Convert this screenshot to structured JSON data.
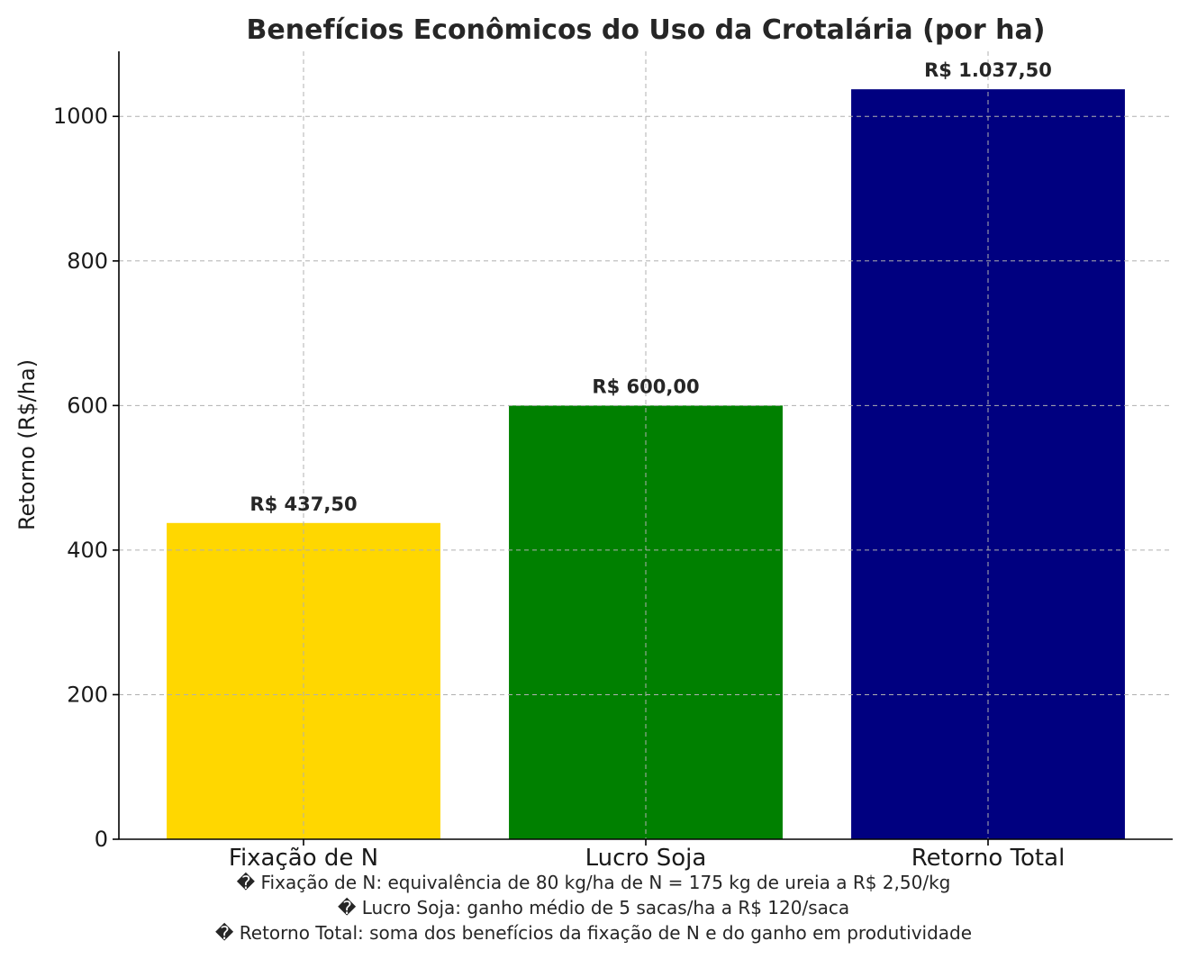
{
  "chart_data": {
    "type": "bar",
    "title": "Benefícios Econômicos do Uso da Crotalária (por ha)",
    "xlabel": "",
    "ylabel": "Retorno (R$/ha)",
    "categories": [
      "Fixação de N",
      "Lucro Soja",
      "Retorno Total"
    ],
    "values": [
      437.5,
      600.0,
      1037.5
    ],
    "data_labels": [
      "R$ 437,50",
      "R$ 600,00",
      "R$ 1.037,50"
    ],
    "colors": [
      "#FFD700",
      "#008000",
      "#000080"
    ],
    "ylim": [
      0,
      1090
    ],
    "yticks": [
      0,
      200,
      400,
      600,
      800,
      1000
    ],
    "ytick_labels": [
      "0",
      "200",
      "400",
      "600",
      "800",
      "1000"
    ],
    "grid": true,
    "legend": "none",
    "notes": [
      "� Fixação de N: equivalência de 80 kg/ha de N = 175 kg de ureia a R$ 2,50/kg",
      "� Lucro Soja: ganho médio de 5 sacas/ha a R$ 120/saca",
      "� Retorno Total: soma dos benefícios da fixação de N e do ganho em produtividade"
    ]
  }
}
